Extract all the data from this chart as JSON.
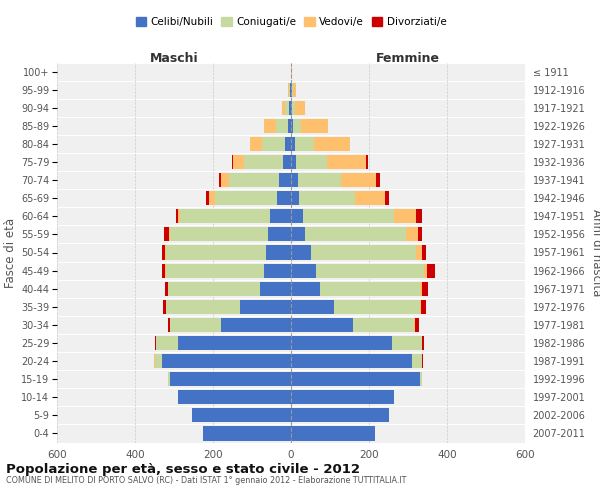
{
  "age_groups": [
    "0-4",
    "5-9",
    "10-14",
    "15-19",
    "20-24",
    "25-29",
    "30-34",
    "35-39",
    "40-44",
    "45-49",
    "50-54",
    "55-59",
    "60-64",
    "65-69",
    "70-74",
    "75-79",
    "80-84",
    "85-89",
    "90-94",
    "95-99",
    "100+"
  ],
  "birth_years": [
    "2007-2011",
    "2002-2006",
    "1997-2001",
    "1992-1996",
    "1987-1991",
    "1982-1986",
    "1977-1981",
    "1972-1976",
    "1967-1971",
    "1962-1966",
    "1957-1961",
    "1952-1956",
    "1947-1951",
    "1942-1946",
    "1937-1941",
    "1932-1936",
    "1927-1931",
    "1922-1926",
    "1917-1921",
    "1912-1916",
    "≤ 1911"
  ],
  "male_celibi": [
    225,
    255,
    290,
    310,
    330,
    290,
    180,
    130,
    80,
    70,
    65,
    60,
    55,
    35,
    30,
    20,
    15,
    8,
    5,
    2,
    0
  ],
  "male_coniugati": [
    0,
    0,
    0,
    5,
    20,
    55,
    130,
    190,
    235,
    250,
    255,
    250,
    230,
    160,
    130,
    100,
    60,
    30,
    10,
    3,
    0
  ],
  "male_vedovi": [
    0,
    0,
    0,
    0,
    1,
    1,
    1,
    1,
    1,
    2,
    2,
    3,
    5,
    15,
    20,
    30,
    30,
    30,
    8,
    2,
    0
  ],
  "male_divorziati": [
    0,
    0,
    0,
    0,
    1,
    2,
    5,
    8,
    8,
    10,
    10,
    12,
    5,
    8,
    5,
    2,
    0,
    0,
    0,
    0,
    0
  ],
  "female_celibi": [
    215,
    250,
    265,
    330,
    310,
    260,
    160,
    110,
    75,
    65,
    50,
    35,
    30,
    20,
    18,
    12,
    10,
    5,
    3,
    2,
    0
  ],
  "female_coniugati": [
    0,
    0,
    0,
    5,
    25,
    75,
    155,
    220,
    255,
    275,
    270,
    260,
    235,
    145,
    110,
    80,
    50,
    20,
    8,
    2,
    0
  ],
  "female_vedovi": [
    0,
    0,
    0,
    0,
    1,
    1,
    2,
    3,
    5,
    8,
    15,
    30,
    55,
    75,
    90,
    100,
    90,
    70,
    25,
    10,
    2
  ],
  "female_divorziati": [
    0,
    0,
    0,
    1,
    2,
    5,
    10,
    12,
    15,
    20,
    10,
    10,
    15,
    10,
    10,
    5,
    2,
    0,
    0,
    0,
    0
  ],
  "color_celibi": "#4472c4",
  "color_coniugati": "#c5d9a0",
  "color_vedovi": "#ffc06e",
  "color_divorziati": "#cc0000",
  "title": "Popolazione per età, sesso e stato civile - 2012",
  "subtitle": "COMUNE DI MELITO DI PORTO SALVO (RC) - Dati ISTAT 1° gennaio 2012 - Elaborazione TUTTITALIA.IT",
  "ylabel_left": "Fasce di età",
  "ylabel_right": "Anni di nascita",
  "xlabel_maschi": "Maschi",
  "xlabel_femmine": "Femmine",
  "xlim": 600,
  "xticks": [
    -600,
    -400,
    -200,
    0,
    200,
    400,
    600
  ],
  "bg_color": "#ffffff",
  "plot_bg_color": "#f0f0f0"
}
